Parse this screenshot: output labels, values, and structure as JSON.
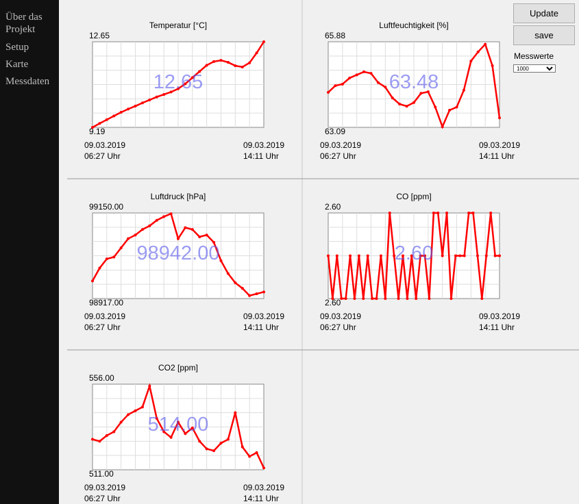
{
  "sidebar": {
    "links": [
      "Über das Projekt",
      "Setup",
      "Karte",
      "Messdaten"
    ]
  },
  "controls": {
    "update": "Update",
    "save": "save",
    "messwerte": "Messwerte",
    "select": "1000"
  },
  "chart_data": [
    {
      "type": "line",
      "title": "Temperatur [°C]",
      "color": "#ff0000",
      "current": "12.65",
      "ylim": [
        9.19,
        12.65
      ],
      "yticks": [
        9.19,
        12.65
      ],
      "values": [
        9.19,
        9.35,
        9.5,
        9.65,
        9.8,
        9.93,
        10.05,
        10.18,
        10.3,
        10.42,
        10.52,
        10.62,
        10.75,
        10.95,
        11.2,
        11.45,
        11.7,
        11.85,
        11.9,
        11.82,
        11.68,
        11.63,
        11.8,
        12.2,
        12.65
      ],
      "date_start": "09.03.2019",
      "time_start": "06:27 Uhr",
      "date_end": "09.03.2019",
      "time_end": "14:11 Uhr"
    },
    {
      "type": "line",
      "title": "Luftfeuchtigkeit [%]",
      "color": "#ff0000",
      "current": "63.48",
      "ylim": [
        63.09,
        65.88
      ],
      "yticks": [
        63.09,
        65.88
      ],
      "values": [
        64.23,
        64.45,
        64.5,
        64.7,
        64.8,
        64.9,
        64.85,
        64.55,
        64.4,
        64.05,
        63.85,
        63.78,
        63.9,
        64.2,
        64.25,
        63.75,
        63.11,
        63.65,
        63.75,
        64.3,
        65.25,
        65.55,
        65.8,
        65.1,
        63.4
      ],
      "date_start": "09.03.2019",
      "time_start": "06:27 Uhr",
      "date_end": "09.03.2019",
      "time_end": "14:11 Uhr"
    },
    {
      "type": "line",
      "title": "Luftdruck [hPa]",
      "color": "#ff0000",
      "current": "98942.00",
      "ylim": [
        98917,
        99150
      ],
      "yticks": [
        {
          "value": 98917,
          "label": "98917.00"
        },
        {
          "value": 99150,
          "label": "99150.00"
        }
      ],
      "values": [
        98965,
        99000,
        99025,
        99030,
        99055,
        99080,
        99090,
        99105,
        99115,
        99130,
        99140,
        99148,
        99080,
        99110,
        99105,
        99085,
        99090,
        99070,
        99020,
        98985,
        98960,
        98945,
        98925,
        98930,
        98935
      ],
      "date_start": "09.03.2019",
      "time_start": "06:27 Uhr",
      "date_end": "09.03.2019",
      "time_end": "14:11 Uhr"
    },
    {
      "type": "line",
      "title": "CO [ppm]",
      "color": "#ff0000",
      "current": "2.60",
      "ylim": [
        2.596,
        2.604
      ],
      "yticks": [
        {
          "value": 2.596,
          "label": "2.60"
        },
        {
          "value": 2.604,
          "label": "2.60"
        }
      ],
      "values": [
        2.6,
        2.596,
        2.6,
        2.596,
        2.596,
        2.6,
        2.596,
        2.6,
        2.596,
        2.6,
        2.596,
        2.596,
        2.6,
        2.596,
        2.604,
        2.6,
        2.596,
        2.6,
        2.596,
        2.6,
        2.596,
        2.6,
        2.6,
        2.596,
        2.604,
        2.604,
        2.6,
        2.604,
        2.596,
        2.6,
        2.6,
        2.6,
        2.604,
        2.604,
        2.6,
        2.596,
        2.6,
        2.604,
        2.6,
        2.6
      ],
      "date_start": "09.03.2019",
      "time_start": "06:27 Uhr",
      "date_end": "09.03.2019",
      "time_end": "14:11 Uhr"
    },
    {
      "type": "line",
      "title": "CO2 [ppm]",
      "color": "#ff0000",
      "current": "514.00",
      "ylim": [
        511,
        556
      ],
      "yticks": [
        {
          "value": 511,
          "label": "511.00"
        },
        {
          "value": 556,
          "label": "556.00"
        }
      ],
      "values": [
        527,
        526,
        529,
        531,
        536,
        540,
        542,
        544,
        555,
        538,
        531,
        528,
        536,
        530,
        533,
        526,
        522,
        521,
        525,
        527,
        541,
        523,
        518,
        520,
        512
      ],
      "date_start": "09.03.2019",
      "time_start": "06:27 Uhr",
      "date_end": "09.03.2019",
      "time_end": "14:11 Uhr"
    }
  ]
}
